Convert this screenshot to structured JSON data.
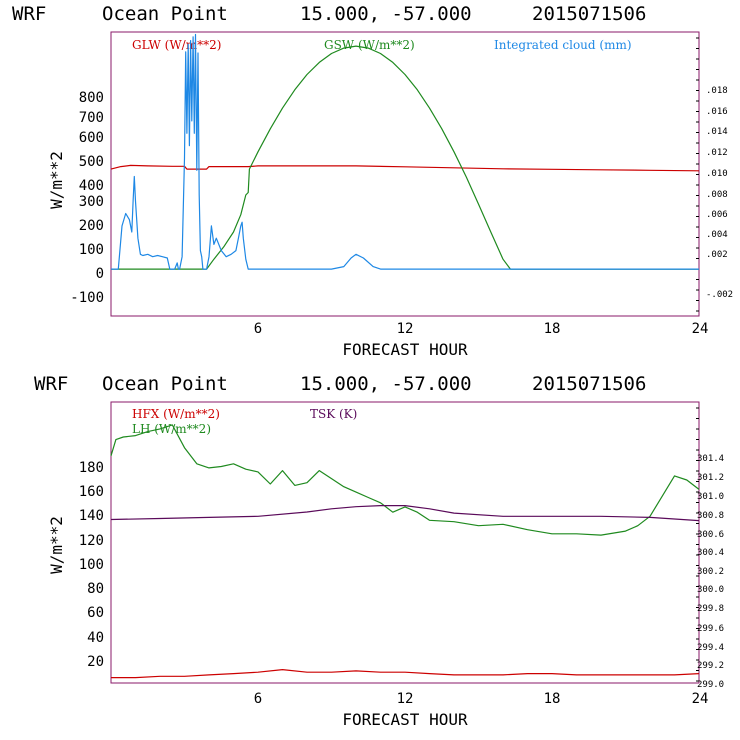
{
  "colors": {
    "red": "#cc0000",
    "green": "#1f8a1f",
    "blue": "#1e88e5",
    "purple": "#5a0a5a",
    "frame": "#8a1a6a",
    "black": "#000000"
  },
  "panels": [
    {
      "header": {
        "model": "WRF",
        "location": "Ocean Point",
        "coords": "15.000, -57.000",
        "run": "2015071506"
      },
      "legend": [
        {
          "label": "GLW (W/m**2)",
          "color": "#cc0000"
        },
        {
          "label": "GSW (W/m**2)",
          "color": "#1f8a1f"
        },
        {
          "label": "Integrated cloud (mm)",
          "color": "#1e88e5"
        }
      ],
      "ylabel": "W/m**2",
      "xlabel": "FORECAST HOUR",
      "x_ticks": [
        "6",
        "12",
        "18",
        "24"
      ],
      "y_ticks": [
        "-100",
        "0",
        "100",
        "200",
        "300",
        "400",
        "500",
        "600",
        "700",
        "800"
      ],
      "right_ticks": [
        "-.002",
        ".002",
        ".004",
        ".006",
        ".008",
        ".010",
        ".012",
        ".014",
        ".016",
        ".018"
      ]
    },
    {
      "header": {
        "model": "WRF",
        "location": "Ocean Point",
        "coords": "15.000, -57.000",
        "run": "2015071506"
      },
      "legend": [
        {
          "label": "HFX (W/m**2)",
          "color": "#cc0000"
        },
        {
          "label": "LH  (W/m**2)",
          "color": "#1f8a1f"
        },
        {
          "label": "TSK (K)",
          "color": "#5a0a5a"
        }
      ],
      "ylabel": "W/m**2",
      "xlabel": "FORECAST HOUR",
      "x_ticks": [
        "6",
        "12",
        "18",
        "24"
      ],
      "y_ticks": [
        "20",
        "40",
        "60",
        "80",
        "100",
        "120",
        "140",
        "160",
        "180"
      ],
      "right_ticks": [
        "299.0",
        "299.2",
        "299.4",
        "299.6",
        "299.8",
        "300.0",
        "300.2",
        "300.4",
        "300.6",
        "300.8",
        "301.0",
        "301.2",
        "301.4"
      ]
    }
  ],
  "chart_data": [
    {
      "type": "line",
      "title": "WRF Ocean Point 15.000, -57.000 2015071506",
      "xlabel": "FORECAST HOUR",
      "ylabel": "W/m**2",
      "xlim": [
        0,
        24
      ],
      "ylim": [
        -190,
        960
      ],
      "y2lim": [
        -0.0038,
        0.0192
      ],
      "series": [
        {
          "name": "GLW (W/m**2)",
          "axis": "left",
          "color": "#cc0000",
          "x": [
            0,
            0.4,
            0.8,
            1.5,
            2.5,
            3.0,
            3.1,
            3.9,
            4.0,
            5.6,
            6.0,
            8,
            10,
            12,
            14,
            16,
            18,
            20,
            22,
            24
          ],
          "y": [
            405,
            415,
            420,
            418,
            416,
            416,
            405,
            405,
            415,
            415,
            418,
            418,
            418,
            414,
            410,
            406,
            404,
            402,
            400,
            398
          ]
        },
        {
          "name": "GSW (W/m**2)",
          "axis": "left",
          "color": "#1f8a1f",
          "x": [
            0,
            3.9,
            4.2,
            4.6,
            5.0,
            5.3,
            5.5,
            5.6,
            5.65,
            6.0,
            6.5,
            7.0,
            7.5,
            8.0,
            8.5,
            9.0,
            9.5,
            10.0,
            10.5,
            11.0,
            11.5,
            12.0,
            12.5,
            13.0,
            13.5,
            14.0,
            14.5,
            15.0,
            15.5,
            16.0,
            16.3,
            17,
            24
          ],
          "y": [
            0,
            0,
            40,
            90,
            150,
            220,
            300,
            310,
            405,
            475,
            568,
            652,
            726,
            788,
            837,
            873,
            895,
            903,
            895,
            873,
            837,
            788,
            726,
            652,
            568,
            475,
            373,
            263,
            150,
            40,
            0,
            0,
            0
          ]
        },
        {
          "name": "Integrated cloud (mm)",
          "axis": "right",
          "color": "#1e88e5",
          "x": [
            0,
            0.3,
            0.45,
            0.6,
            0.75,
            0.85,
            0.9,
            0.95,
            1.0,
            1.1,
            1.2,
            1.3,
            1.5,
            1.7,
            1.9,
            2.1,
            2.3,
            2.4,
            2.5,
            2.6,
            2.7,
            2.75,
            2.8,
            2.9,
            3.0,
            3.05,
            3.1,
            3.15,
            3.2,
            3.25,
            3.3,
            3.35,
            3.4,
            3.45,
            3.5,
            3.55,
            3.6,
            3.65,
            3.7,
            3.75,
            3.8,
            3.9,
            4.0,
            4.1,
            4.2,
            4.3,
            4.5,
            4.7,
            4.9,
            5.1,
            5.2,
            5.3,
            5.35,
            5.4,
            5.5,
            5.6,
            9.0,
            9.5,
            9.8,
            10.0,
            10.3,
            10.7,
            11.0,
            24
          ],
          "y": [
            0,
            0,
            0.0035,
            0.0045,
            0.004,
            0.003,
            0.0055,
            0.0075,
            0.0055,
            0.0025,
            0.0012,
            0.0011,
            0.0012,
            0.001,
            0.0011,
            0.001,
            0.0009,
            0.0,
            0.0,
            0.0,
            0.0005,
            0.0,
            0.0,
            0.001,
            0.009,
            0.0176,
            0.011,
            0.0182,
            0.01,
            0.0185,
            0.012,
            0.0188,
            0.011,
            0.019,
            0.008,
            0.0175,
            0.006,
            0.0015,
            0.001,
            0.0,
            0.0,
            0.0,
            0.001,
            0.0035,
            0.002,
            0.0025,
            0.0015,
            0.001,
            0.0012,
            0.0015,
            0.0025,
            0.0035,
            0.0038,
            0.0025,
            0.0008,
            0.0,
            0.0,
            0.0002,
            0.0009,
            0.0012,
            0.0009,
            0.0002,
            0.0,
            0.0
          ]
        }
      ]
    },
    {
      "type": "line",
      "title": "WRF Ocean Point 15.000, -57.000 2015071506",
      "xlabel": "FORECAST HOUR",
      "ylabel": "W/m**2",
      "xlim": [
        0,
        24
      ],
      "ylim": [
        1,
        210
      ],
      "y2lim": [
        298.99,
        301.62
      ],
      "series": [
        {
          "name": "HFX (W/m**2)",
          "axis": "left",
          "color": "#cc0000",
          "x": [
            0,
            1,
            2,
            3,
            4,
            5,
            6,
            7,
            8,
            9,
            10,
            11,
            12,
            13,
            14,
            15,
            16,
            17,
            18,
            19,
            20,
            21,
            22,
            23,
            24
          ],
          "y": [
            5,
            5,
            6,
            6,
            7,
            8,
            9,
            11,
            9,
            9,
            10,
            9,
            9,
            8,
            7,
            7,
            7,
            8,
            8,
            7,
            7,
            7,
            7,
            7,
            8
          ]
        },
        {
          "name": "LH  (W/m**2)",
          "axis": "left",
          "color": "#1f8a1f",
          "x": [
            0,
            0.2,
            0.5,
            1.0,
            1.5,
            2.0,
            2.5,
            3.0,
            3.5,
            4.0,
            4.5,
            5.0,
            5.5,
            6.0,
            6.5,
            7.0,
            7.5,
            8.0,
            8.5,
            9.0,
            9.5,
            10.0,
            10.5,
            11.0,
            11.5,
            12.0,
            12.5,
            13.0,
            14.0,
            15.0,
            16.0,
            17.0,
            18.0,
            19.0,
            20.0,
            21.0,
            21.5,
            22.0,
            22.5,
            23.0,
            23.5,
            24
          ],
          "y": [
            170,
            182,
            184,
            185,
            188,
            190,
            193,
            176,
            164,
            161,
            162,
            164,
            160,
            158,
            149,
            159,
            148,
            150,
            159,
            153,
            147,
            143,
            139,
            135,
            128,
            132,
            128,
            122,
            121,
            118,
            119,
            115,
            112,
            112,
            111,
            114,
            118,
            125,
            140,
            155,
            152,
            145
          ]
        },
        {
          "name": "TSK (K)",
          "axis": "right",
          "color": "#5a0a5a",
          "x": [
            0,
            2,
            4,
            6,
            8,
            9,
            10,
            11,
            12,
            13,
            14,
            16,
            18,
            20,
            22,
            24
          ],
          "y": [
            300.52,
            300.53,
            300.54,
            300.55,
            300.59,
            300.62,
            300.64,
            300.65,
            300.65,
            300.62,
            300.58,
            300.55,
            300.55,
            300.55,
            300.54,
            300.51
          ]
        }
      ]
    }
  ]
}
